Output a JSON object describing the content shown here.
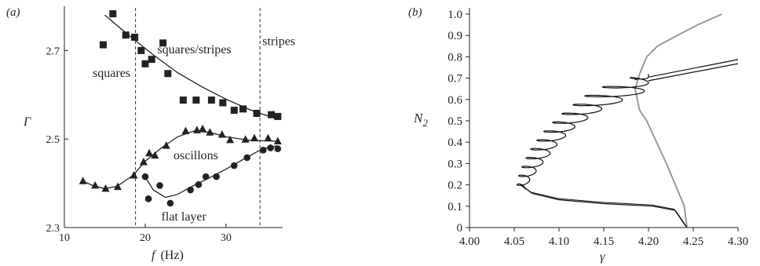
{
  "panel_a_label": "(a)",
  "panel_b_label": "(b)",
  "chart_data": [
    {
      "type": "scatter",
      "panel": "a",
      "xlabel_var": "f",
      "xlabel_unit": "(Hz)",
      "ylabel": "Γ",
      "xlim": [
        10,
        37
      ],
      "ylim": [
        2.3,
        2.8
      ],
      "xticks": [
        10,
        20,
        30
      ],
      "yticks": [
        2.3,
        2.5,
        2.7
      ],
      "vlines": [
        18.8,
        34.2
      ],
      "region_labels": [
        {
          "text": "squares",
          "x": 13.5,
          "y": 2.64
        },
        {
          "text": "squares/stripes",
          "x": 21.5,
          "y": 2.694
        },
        {
          "text": "stripes",
          "x": 34.5,
          "y": 2.712
        },
        {
          "text": "oscillons",
          "x": 23.5,
          "y": 2.454
        },
        {
          "text": "flat layer",
          "x": 22.0,
          "y": 2.316
        }
      ],
      "series": [
        {
          "marker": "square",
          "points": [
            [
              14.8,
              2.713
            ],
            [
              16.0,
              2.783
            ],
            [
              17.6,
              2.735
            ],
            [
              18.7,
              2.73
            ],
            [
              19.5,
              2.7
            ],
            [
              20.0,
              2.67
            ],
            [
              20.8,
              2.68
            ],
            [
              22.2,
              2.717
            ],
            [
              22.8,
              2.648
            ],
            [
              24.7,
              2.588
            ],
            [
              26.3,
              2.588
            ],
            [
              28.2,
              2.588
            ],
            [
              29.6,
              2.582
            ],
            [
              31.0,
              2.565
            ],
            [
              32.1,
              2.568
            ],
            [
              33.8,
              2.558
            ],
            [
              35.6,
              2.555
            ],
            [
              36.4,
              2.551
            ]
          ],
          "fit": [
            [
              15.0,
              2.78
            ],
            [
              18.0,
              2.734
            ],
            [
              21.0,
              2.69
            ],
            [
              24.0,
              2.65
            ],
            [
              27.0,
              2.618
            ],
            [
              30.0,
              2.59
            ],
            [
              33.0,
              2.566
            ],
            [
              36.3,
              2.545
            ]
          ]
        },
        {
          "marker": "triangle",
          "points": [
            [
              12.3,
              2.405
            ],
            [
              13.8,
              2.395
            ],
            [
              15.1,
              2.388
            ],
            [
              16.6,
              2.392
            ],
            [
              18.6,
              2.418
            ],
            [
              19.8,
              2.448
            ],
            [
              20.5,
              2.468
            ],
            [
              21.2,
              2.463
            ],
            [
              22.6,
              2.485
            ],
            [
              25.0,
              2.518
            ],
            [
              26.4,
              2.52
            ],
            [
              27.1,
              2.523
            ],
            [
              28.0,
              2.515
            ],
            [
              29.5,
              2.51
            ],
            [
              30.5,
              2.498
            ],
            [
              32.4,
              2.499
            ],
            [
              33.5,
              2.502
            ],
            [
              35.2,
              2.502
            ],
            [
              36.4,
              2.495
            ]
          ],
          "fit": [
            [
              12.3,
              2.405
            ],
            [
              13.5,
              2.395
            ],
            [
              15.0,
              2.388
            ],
            [
              16.5,
              2.393
            ],
            [
              18.5,
              2.418
            ],
            [
              20.0,
              2.45
            ],
            [
              22.0,
              2.48
            ],
            [
              24.0,
              2.505
            ],
            [
              26.0,
              2.518
            ],
            [
              28.0,
              2.515
            ],
            [
              30.0,
              2.505
            ],
            [
              33.0,
              2.497
            ],
            [
              36.5,
              2.495
            ]
          ]
        },
        {
          "marker": "circle",
          "points": [
            [
              20.0,
              2.415
            ],
            [
              20.4,
              2.365
            ],
            [
              21.8,
              2.395
            ],
            [
              23.1,
              2.355
            ],
            [
              25.6,
              2.385
            ],
            [
              26.6,
              2.397
            ],
            [
              27.5,
              2.415
            ],
            [
              28.8,
              2.415
            ],
            [
              31.0,
              2.44
            ],
            [
              32.6,
              2.458
            ],
            [
              34.6,
              2.475
            ],
            [
              35.5,
              2.48
            ],
            [
              36.4,
              2.478
            ]
          ],
          "fit": [
            [
              19.8,
              2.42
            ],
            [
              21.0,
              2.385
            ],
            [
              22.5,
              2.368
            ],
            [
              24.0,
              2.375
            ],
            [
              26.0,
              2.395
            ],
            [
              28.0,
              2.413
            ],
            [
              30.0,
              2.432
            ],
            [
              32.5,
              2.458
            ],
            [
              34.5,
              2.478
            ],
            [
              36.3,
              2.485
            ]
          ]
        }
      ]
    },
    {
      "type": "line",
      "panel": "b",
      "xlabel": "γ",
      "ylabel_main": "N",
      "ylabel_sub": "2",
      "xlim": [
        4.0,
        4.3
      ],
      "ylim": [
        0,
        1.0
      ],
      "xticks": [
        "4.00",
        "4.05",
        "4.10",
        "4.15",
        "4.20",
        "4.25",
        "4.30"
      ],
      "yticks": [
        "0",
        "0.1",
        "0.2",
        "0.3",
        "0.4",
        "0.5",
        "0.6",
        "0.7",
        "0.8",
        "0.9",
        "1.0"
      ],
      "series": [
        {
          "color": "#999999",
          "points": [
            [
              4.243,
              0.0
            ],
            [
              4.24,
              0.1
            ],
            [
              4.22,
              0.3
            ],
            [
              4.198,
              0.5
            ],
            [
              4.19,
              0.55
            ],
            [
              4.185,
              0.65
            ],
            [
              4.19,
              0.72
            ],
            [
              4.198,
              0.8
            ],
            [
              4.21,
              0.85
            ],
            [
              4.232,
              0.9
            ],
            [
              4.255,
              0.95
            ],
            [
              4.282,
              1.0
            ]
          ]
        },
        {
          "color": "#111111",
          "type": "snaking",
          "envelope": {
            "lower": [
              [
                4.243,
                0.0
              ],
              [
                4.23,
                0.08
              ],
              [
                4.205,
                0.1
              ],
              [
                4.15,
                0.112
              ],
              [
                4.1,
                0.13
              ],
              [
                4.07,
                0.16
              ],
              [
                4.057,
                0.2
              ]
            ],
            "right": [
              [
                4.062,
                0.19
              ],
              [
                4.072,
                0.25
              ],
              [
                4.085,
                0.32
              ],
              [
                4.1,
                0.4
              ],
              [
                4.12,
                0.48
              ],
              [
                4.15,
                0.56
              ],
              [
                4.185,
                0.62
              ],
              [
                4.2,
                0.645
              ]
            ],
            "left": [
              [
                4.053,
                0.22
              ],
              [
                4.06,
                0.3
              ],
              [
                4.07,
                0.38
              ],
              [
                4.085,
                0.46
              ],
              [
                4.105,
                0.54
              ],
              [
                4.13,
                0.62
              ],
              [
                4.16,
                0.68
              ],
              [
                4.2,
                0.715
              ]
            ],
            "spiral_from": 0.18,
            "spiral_to": 0.72,
            "n_turns": 13,
            "ends": [
              {
                "from": [
                  4.2,
                  0.705
                ],
                "to": [
                  4.3,
                  0.787
                ]
              },
              {
                "from": [
                  4.2,
                  0.688
                ],
                "to": [
                  4.3,
                  0.768
                ]
              },
              {
                "from": [
                  4.185,
                  0.692
                ],
                "to": [
                  4.19,
                  0.7
                ]
              }
            ]
          }
        }
      ]
    }
  ]
}
